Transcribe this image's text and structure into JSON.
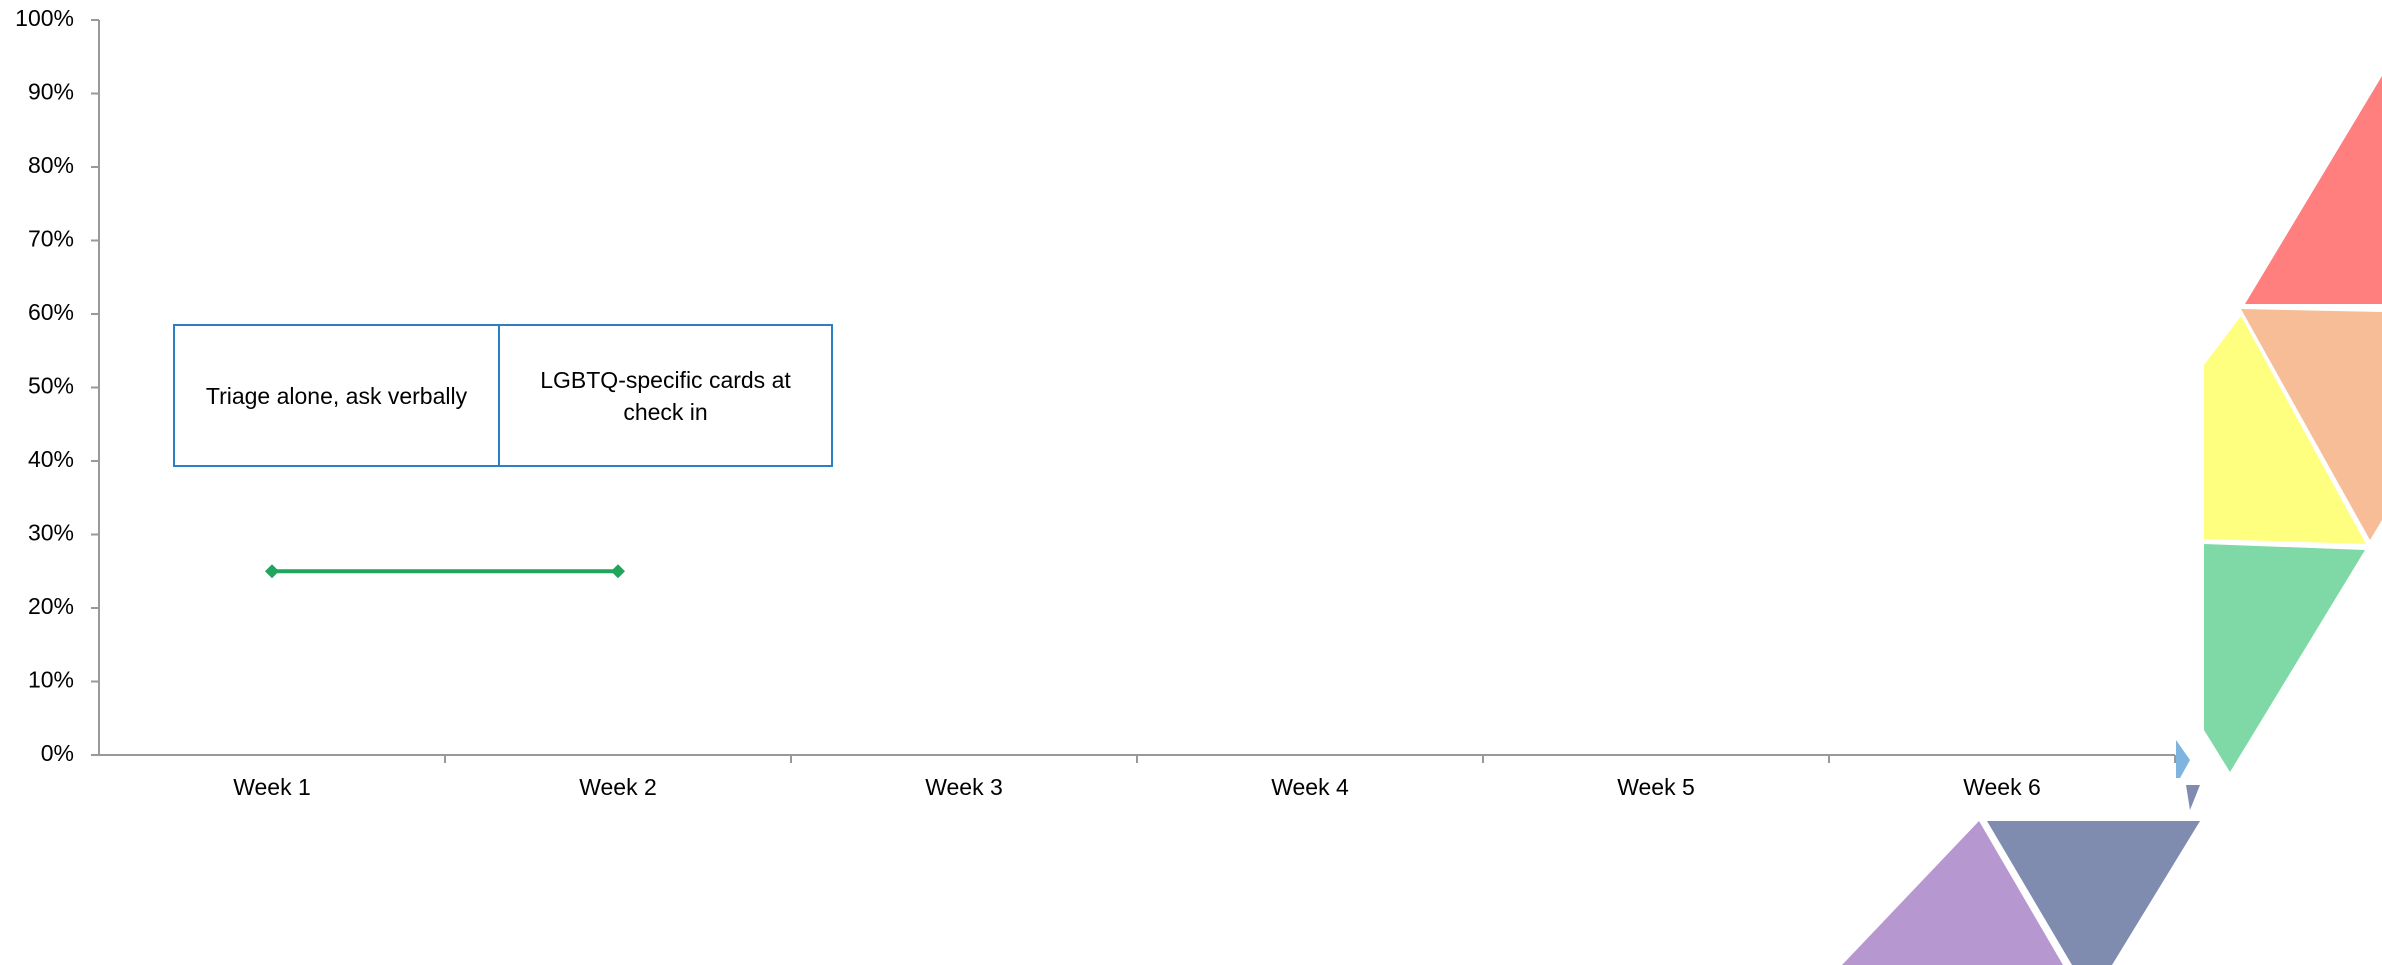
{
  "chart_data": {
    "type": "line",
    "categories": [
      "Week 1",
      "Week 2",
      "Week 3",
      "Week 4",
      "Week 5",
      "Week 6"
    ],
    "series": [
      {
        "color": "#1fa65c",
        "values": [
          25,
          25,
          null,
          null,
          null,
          null
        ]
      }
    ],
    "ylim": [
      0,
      100
    ],
    "yticks": [
      {
        "value": 0,
        "label": "0%"
      },
      {
        "value": 10,
        "label": "10%"
      },
      {
        "value": 20,
        "label": "20%"
      },
      {
        "value": 30,
        "label": "30%"
      },
      {
        "value": 40,
        "label": "40%"
      },
      {
        "value": 50,
        "label": "50%"
      },
      {
        "value": 60,
        "label": "60%"
      },
      {
        "value": 70,
        "label": "70%"
      },
      {
        "value": 80,
        "label": "80%"
      },
      {
        "value": 90,
        "label": "90%"
      },
      {
        "value": 100,
        "label": "100%"
      }
    ],
    "grid": false,
    "annotations": [
      "Triage alone, ask verbally",
      "LGBTQ-specific cards at check in"
    ]
  }
}
